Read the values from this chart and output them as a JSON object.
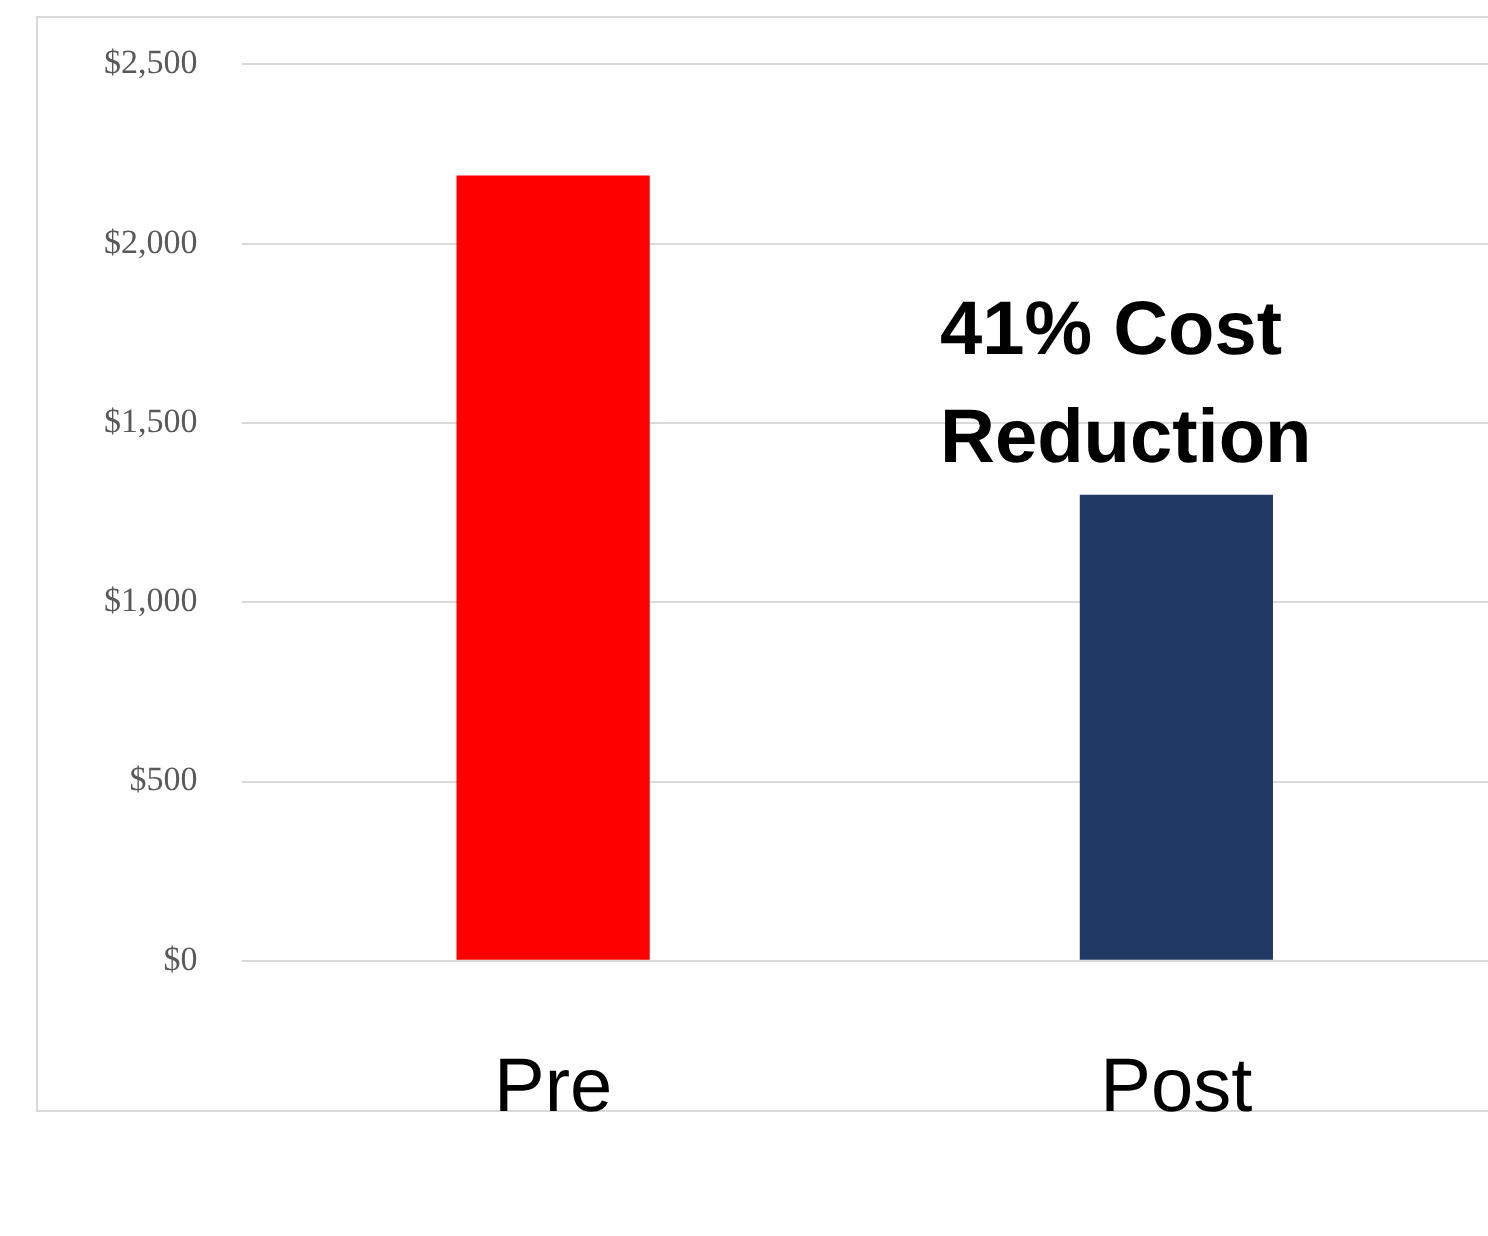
{
  "chart_data": {
    "type": "bar",
    "categories": [
      "Pre",
      "Post"
    ],
    "values": [
      2190,
      1300
    ],
    "colors": [
      "#ff0000",
      "#1f3864"
    ],
    "ylim": [
      0,
      2500
    ],
    "yticks": [
      {
        "value": 0,
        "label": "$0"
      },
      {
        "value": 500,
        "label": "$500"
      },
      {
        "value": 1000,
        "label": "$1,000"
      },
      {
        "value": 1500,
        "label": "$1,500"
      },
      {
        "value": 2000,
        "label": "$2,000"
      },
      {
        "value": 2500,
        "label": "$2,500"
      }
    ],
    "grid": "y",
    "legend": false,
    "annotations": [
      "41%  Cost Reduction"
    ]
  }
}
